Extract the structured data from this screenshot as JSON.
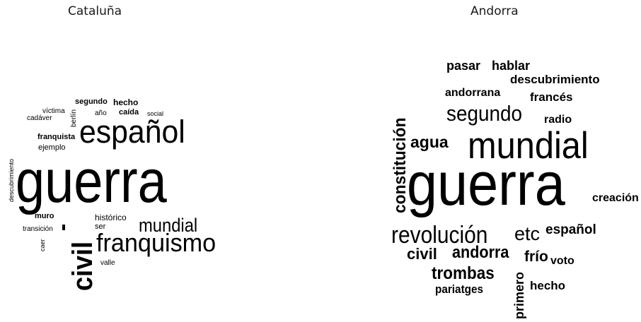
{
  "clouds": [
    {
      "title": "Cataluña",
      "words": [
        "guerra",
        "español",
        "civil",
        "franquismo",
        "mundial",
        "segundo",
        "hecho",
        "víctima",
        "cadáver",
        "berlín",
        "año",
        "caída",
        "social",
        "franquista",
        "ejemplo",
        "descubrimiento",
        "muro",
        "transición",
        "caer",
        "histórico",
        "ser",
        "valle"
      ]
    },
    {
      "title": "Andorra",
      "words": [
        "guerra",
        "mundial",
        "constitución",
        "segundo",
        "revolución",
        "etc",
        "andorra",
        "trombas",
        "civil",
        "agua",
        "pasar",
        "hablar",
        "descubrimiento",
        "andorrana",
        "francés",
        "radio",
        "creación",
        "español",
        "frío",
        "voto",
        "primero",
        "hecho",
        "pariatges"
      ]
    }
  ]
}
